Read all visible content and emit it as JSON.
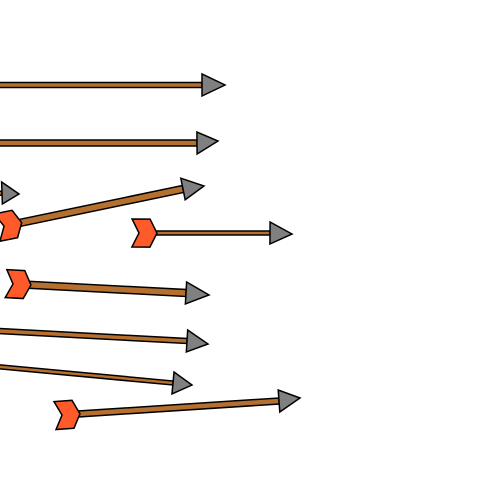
{
  "scene": {
    "background": "#ffffff",
    "colors": {
      "shaft": "#b5702f",
      "arrowhead": "#808080",
      "fletching": "#ff5a2a",
      "outline": "#000000"
    },
    "arrow_count": 9,
    "arrows": [
      {
        "name": "arrow-1",
        "icon": "arrow-icon",
        "fletching_visible": false
      },
      {
        "name": "arrow-2",
        "icon": "arrow-icon",
        "fletching_visible": false
      },
      {
        "name": "arrow-3",
        "icon": "arrow-icon",
        "fletching_visible": false
      },
      {
        "name": "arrow-4",
        "icon": "arrow-icon",
        "fletching_visible": true
      },
      {
        "name": "arrow-5",
        "icon": "arrow-icon",
        "fletching_visible": true
      },
      {
        "name": "arrow-6",
        "icon": "arrow-icon",
        "fletching_visible": true
      },
      {
        "name": "arrow-7",
        "icon": "arrow-icon",
        "fletching_visible": false
      },
      {
        "name": "arrow-8",
        "icon": "arrow-icon",
        "fletching_visible": false
      },
      {
        "name": "arrow-9",
        "icon": "arrow-icon",
        "fletching_visible": true
      }
    ]
  }
}
